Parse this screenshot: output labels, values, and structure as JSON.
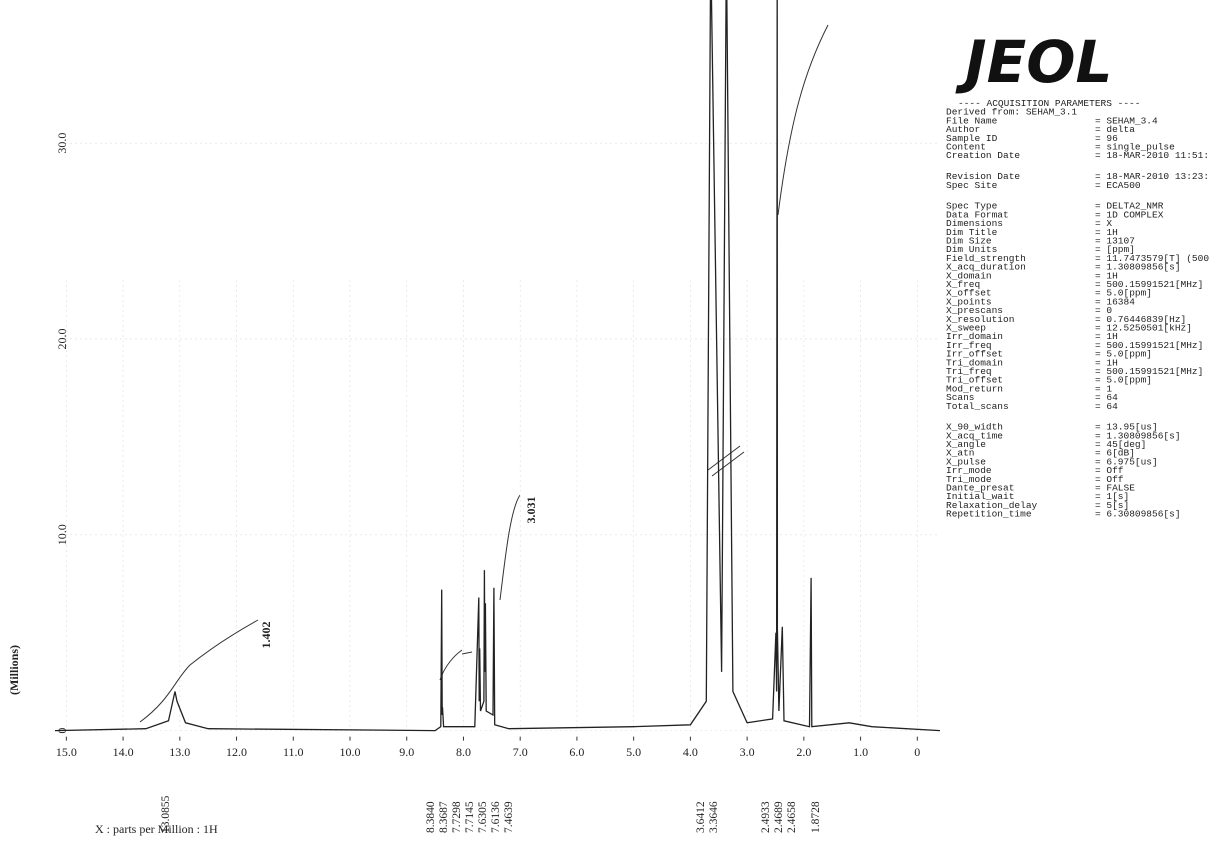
{
  "chart_data": {
    "type": "line",
    "logo": "JEOL",
    "ylabel": "(Millions)",
    "xlabel": "X : parts per Million : 1H",
    "xlim": [
      15.2,
      -0.4
    ],
    "ylim": [
      -1.5,
      36.8
    ],
    "xticks": [
      {
        "value": 15,
        "label": "15.0"
      },
      {
        "value": 14,
        "label": "14.0"
      },
      {
        "value": 13,
        "label": "13.0"
      },
      {
        "value": 12,
        "label": "12.0"
      },
      {
        "value": 11,
        "label": "11.0"
      },
      {
        "value": 10,
        "label": "10.0"
      },
      {
        "value": 9,
        "label": "9.0"
      },
      {
        "value": 8,
        "label": "8.0"
      },
      {
        "value": 7,
        "label": "7.0"
      },
      {
        "value": 6,
        "label": "6.0"
      },
      {
        "value": 5,
        "label": "5.0"
      },
      {
        "value": 4,
        "label": "4.0"
      },
      {
        "value": 3,
        "label": "3.0"
      },
      {
        "value": 2,
        "label": "2.0"
      },
      {
        "value": 1,
        "label": "1.0"
      },
      0
    ],
    "yticks": [
      0,
      {
        "value": 10,
        "label": "10.0"
      },
      {
        "value": 20,
        "label": "20.0"
      },
      {
        "value": 30,
        "label": "30.0"
      }
    ],
    "grid": true,
    "series": [
      {
        "name": "1H",
        "color": "#222222",
        "x": [
          15.2,
          13.6,
          13.2,
          13.1,
          13.0855,
          13.05,
          12.9,
          12.5,
          8.5,
          8.4,
          8.384,
          8.375,
          8.3687,
          8.35,
          7.8,
          7.7298,
          7.722,
          7.7145,
          7.7,
          7.64,
          7.6305,
          7.622,
          7.6136,
          7.6,
          7.48,
          7.4639,
          7.45,
          7.2,
          5,
          4,
          3.72,
          3.6412,
          3.45,
          3.3646,
          3.25,
          3,
          2.55,
          2.4933,
          2.48,
          2.4689,
          2.4658,
          2.44,
          2.38,
          2.35,
          1.9,
          1.8728,
          1.86,
          1.2,
          0.8,
          -0.4
        ],
        "values": [
          0,
          0.1,
          0.5,
          1.8,
          2.0,
          1.5,
          0.4,
          0.1,
          0,
          0.2,
          7.2,
          0.8,
          1.2,
          0.2,
          0.2,
          6.8,
          1.5,
          4.2,
          1,
          1.5,
          8.2,
          3,
          6.5,
          1,
          0.8,
          7.3,
          0.3,
          0.1,
          0.2,
          0.3,
          1.5,
          40,
          3,
          40,
          2,
          0.4,
          0.6,
          5.0,
          2,
          40,
          5.2,
          1,
          5.3,
          0.5,
          0.2,
          7.8,
          0.2,
          0.4,
          0.2,
          0
        ]
      }
    ],
    "integrals": [
      "1.402",
      "3.031"
    ],
    "peak_labels": [
      "13.0855",
      "8.3840",
      "8.3687",
      "7.7298",
      "7.7145",
      "7.6305",
      "7.6136",
      "7.4639",
      "3.6412",
      "3.3646",
      "2.4933",
      "2.4689",
      "2.4658",
      "1.8728"
    ],
    "parameters": {
      "header": "---- ACQUISITION PARAMETERS ----",
      "derived_from": "Derived from: SEHAM_3.1",
      "groups": [
        [
          [
            "File Name",
            "= SEHAM_3.4"
          ],
          [
            "Author",
            "= delta"
          ],
          [
            "Sample ID",
            "= 96"
          ],
          [
            "Content",
            "= single_pulse"
          ],
          [
            "Creation Date",
            "= 18-MAR-2010 11:51:"
          ]
        ],
        [
          [
            "Revision Date",
            "= 18-MAR-2010 13:23:"
          ],
          [
            "Spec Site",
            "= ECA500"
          ]
        ],
        [
          [
            "Spec Type",
            "= DELTA2_NMR"
          ],
          [
            "Data Format",
            "= 1D COMPLEX"
          ],
          [
            "Dimensions",
            "= X"
          ],
          [
            "Dim Title",
            "= 1H"
          ],
          [
            "Dim Size",
            "= 13107"
          ],
          [
            "Dim Units",
            "= [ppm]"
          ],
          [
            "Field_strength",
            "= 11.7473579[T] (500"
          ],
          [
            "X_acq_duration",
            "= 1.30809856[s]"
          ],
          [
            "X_domain",
            "= 1H"
          ],
          [
            "X_freq",
            "= 500.15991521[MHz]"
          ],
          [
            "X_offset",
            "= 5.0[ppm]"
          ],
          [
            "X_points",
            "= 16384"
          ],
          [
            "X_prescans",
            "= 0"
          ],
          [
            "X_resolution",
            "= 0.76446839[Hz]"
          ],
          [
            "X_sweep",
            "= 12.5250501[kHz]"
          ],
          [
            "Irr_domain",
            "= 1H"
          ],
          [
            "Irr_freq",
            "= 500.15991521[MHz]"
          ],
          [
            "Irr_offset",
            "= 5.0[ppm]"
          ],
          [
            "Tri_domain",
            "= 1H"
          ],
          [
            "Tri_freq",
            "= 500.15991521[MHz]"
          ],
          [
            "Tri_offset",
            "= 5.0[ppm]"
          ],
          [
            "Mod_return",
            "= 1"
          ],
          [
            "Scans",
            "= 64"
          ],
          [
            "Total_scans",
            "= 64"
          ]
        ],
        [
          [
            "X_90_width",
            "= 13.95[us]"
          ],
          [
            "X_acq_time",
            "= 1.30809856[s]"
          ],
          [
            "X_angle",
            "= 45[deg]"
          ],
          [
            "X_atn",
            "= 6[dB]"
          ],
          [
            "X_pulse",
            "= 6.975[us]"
          ],
          [
            "Irr_mode",
            "= Off"
          ],
          [
            "Tri_mode",
            "= Off"
          ],
          [
            "Dante_presat",
            "= FALSE"
          ],
          [
            "Initial_wait",
            "= 1[s]"
          ],
          [
            "Relaxation_delay",
            "= 5[s]"
          ],
          [
            "Repetition_time",
            "= 6.30809856[s]"
          ]
        ]
      ]
    }
  }
}
